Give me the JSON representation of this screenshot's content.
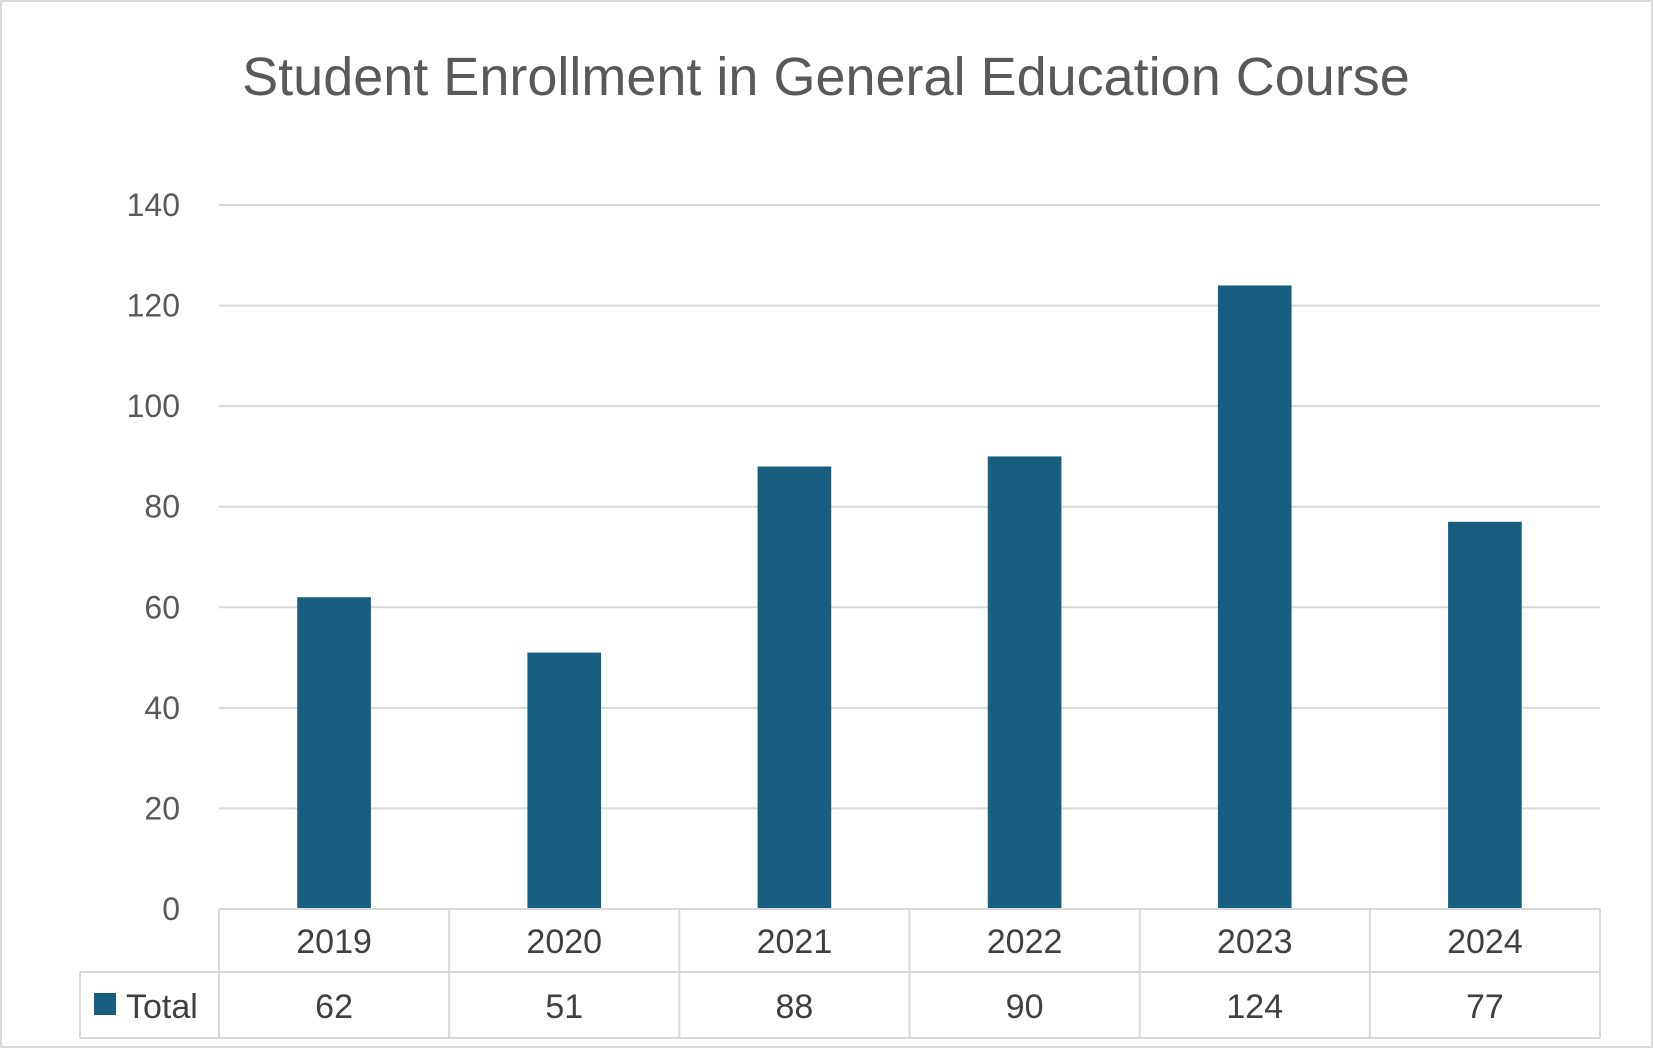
{
  "chart_data": {
    "type": "bar",
    "title": "Student  Enrollment in General Education Course",
    "categories": [
      "2019",
      "2020",
      "2021",
      "2022",
      "2023",
      "2024"
    ],
    "series": [
      {
        "name": "Total",
        "values": [
          62,
          51,
          88,
          90,
          124,
          77
        ],
        "color": "#175E80"
      }
    ],
    "ylim": [
      0,
      140
    ],
    "yticks": [
      "0",
      "20",
      "40",
      "60",
      "80",
      "100",
      "120",
      "140"
    ],
    "grid": true,
    "legend": "data-table",
    "data_table": true
  }
}
